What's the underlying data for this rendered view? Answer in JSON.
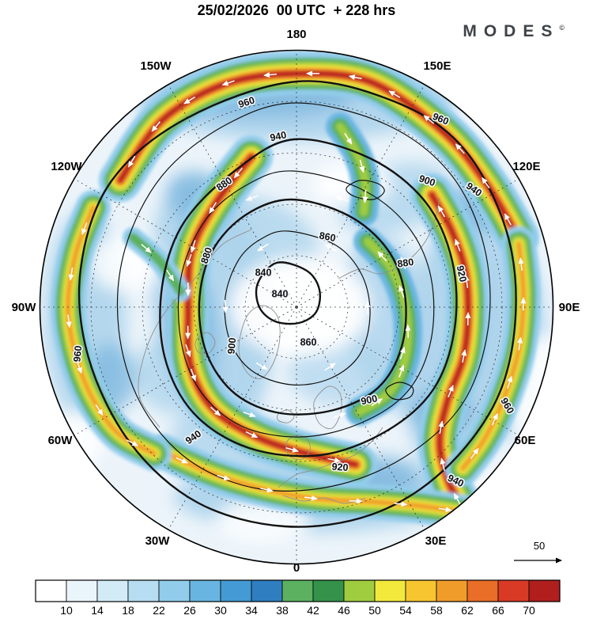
{
  "header": {
    "title": "25/02/2026  00 UTC  + 228 hrs",
    "brand": "MODES",
    "brand_symbol": "©"
  },
  "map": {
    "lon_labels": [
      "180",
      "150W",
      "150E",
      "120W",
      "120E",
      "90W",
      "90E",
      "60W",
      "60E",
      "30W",
      "30E",
      "0"
    ],
    "contour_labels": [
      "960",
      "940",
      "900",
      "880",
      "880",
      "840",
      "840",
      "860",
      "860",
      "880",
      "900",
      "900",
      "920",
      "940",
      "960",
      "960",
      "960",
      "940",
      "920",
      "940"
    ],
    "reference_arrow_label": "50"
  },
  "chart_data": {
    "type": "heatmap",
    "title": "25/02/2026 00 UTC + 228 hrs",
    "valid_date": "25/02/2026",
    "run_time": "00 UTC",
    "lead_time": "+ 228 hrs",
    "projection": "north-polar-stereographic",
    "colorbar": {
      "ticks": [
        10,
        14,
        18,
        22,
        26,
        30,
        34,
        38,
        42,
        46,
        50,
        54,
        58,
        62,
        66,
        70
      ],
      "colors": [
        "#ffffff",
        "#eaf5fb",
        "#d3ebf7",
        "#b6ddf2",
        "#92cceb",
        "#69b5e1",
        "#449ad4",
        "#2f7ec0",
        "#5cb161",
        "#35924b",
        "#a0cc3f",
        "#f3e93d",
        "#f6c530",
        "#f09c2b",
        "#e96e27",
        "#d93a26",
        "#b01f1d"
      ],
      "legend_position": "bottom"
    },
    "contour_levels": [
      840,
      860,
      880,
      900,
      920,
      940,
      960
    ],
    "reference_vector": 50,
    "longitude_ring_labels": [
      "180",
      "150W",
      "150E",
      "120W",
      "120E",
      "90W",
      "90E",
      "60W",
      "60E",
      "30W",
      "30E",
      "0"
    ]
  }
}
